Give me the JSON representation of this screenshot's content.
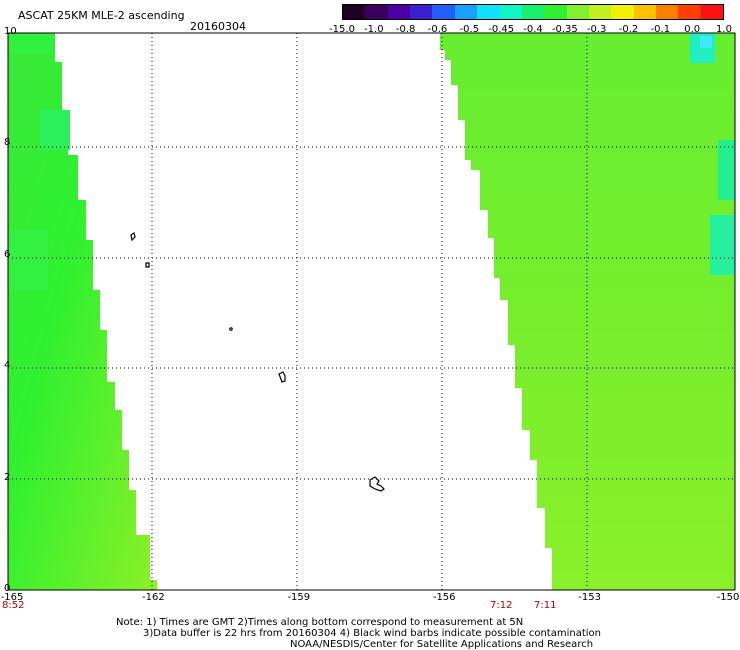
{
  "header": {
    "title": "ASCAT 25KM MLE-2 ascending",
    "date": "20160304"
  },
  "colorbar": {
    "ticks": [
      "-15.0",
      "-1.0",
      "-0.8",
      "-0.6",
      "-0.5",
      "-0.45",
      "-0.4",
      "-0.35",
      "-0.3",
      "-0.2",
      "-0.1",
      "0.0",
      "1.0"
    ],
    "colors": [
      "#200020",
      "#3a0060",
      "#4a00a0",
      "#3a20d0",
      "#1f60ff",
      "#1aa0ff",
      "#12e0ff",
      "#10f5c8",
      "#18f070",
      "#30f030",
      "#80f030",
      "#c0f020",
      "#f0f000",
      "#ffc000",
      "#ff8000",
      "#ff4000",
      "#ff1010"
    ]
  },
  "axes": {
    "y_ticks": [
      "0",
      "2",
      "4",
      "6",
      "8",
      "10"
    ],
    "x_ticks": [
      "-165",
      "-162",
      "-159",
      "-156",
      "-153",
      "-150"
    ]
  },
  "times": [
    "8:52",
    "7:12",
    "7:11"
  ],
  "notes": [
    "Note: 1) Times are GMT 2)Times along bottom correspond to measurement at 5N",
    "3)Data buffer is 22 hrs from 20160304 4) Black wind barbs indicate possible contamination",
    "NOAA/NESDIS/Center for Satellite Applications and Research"
  ]
}
